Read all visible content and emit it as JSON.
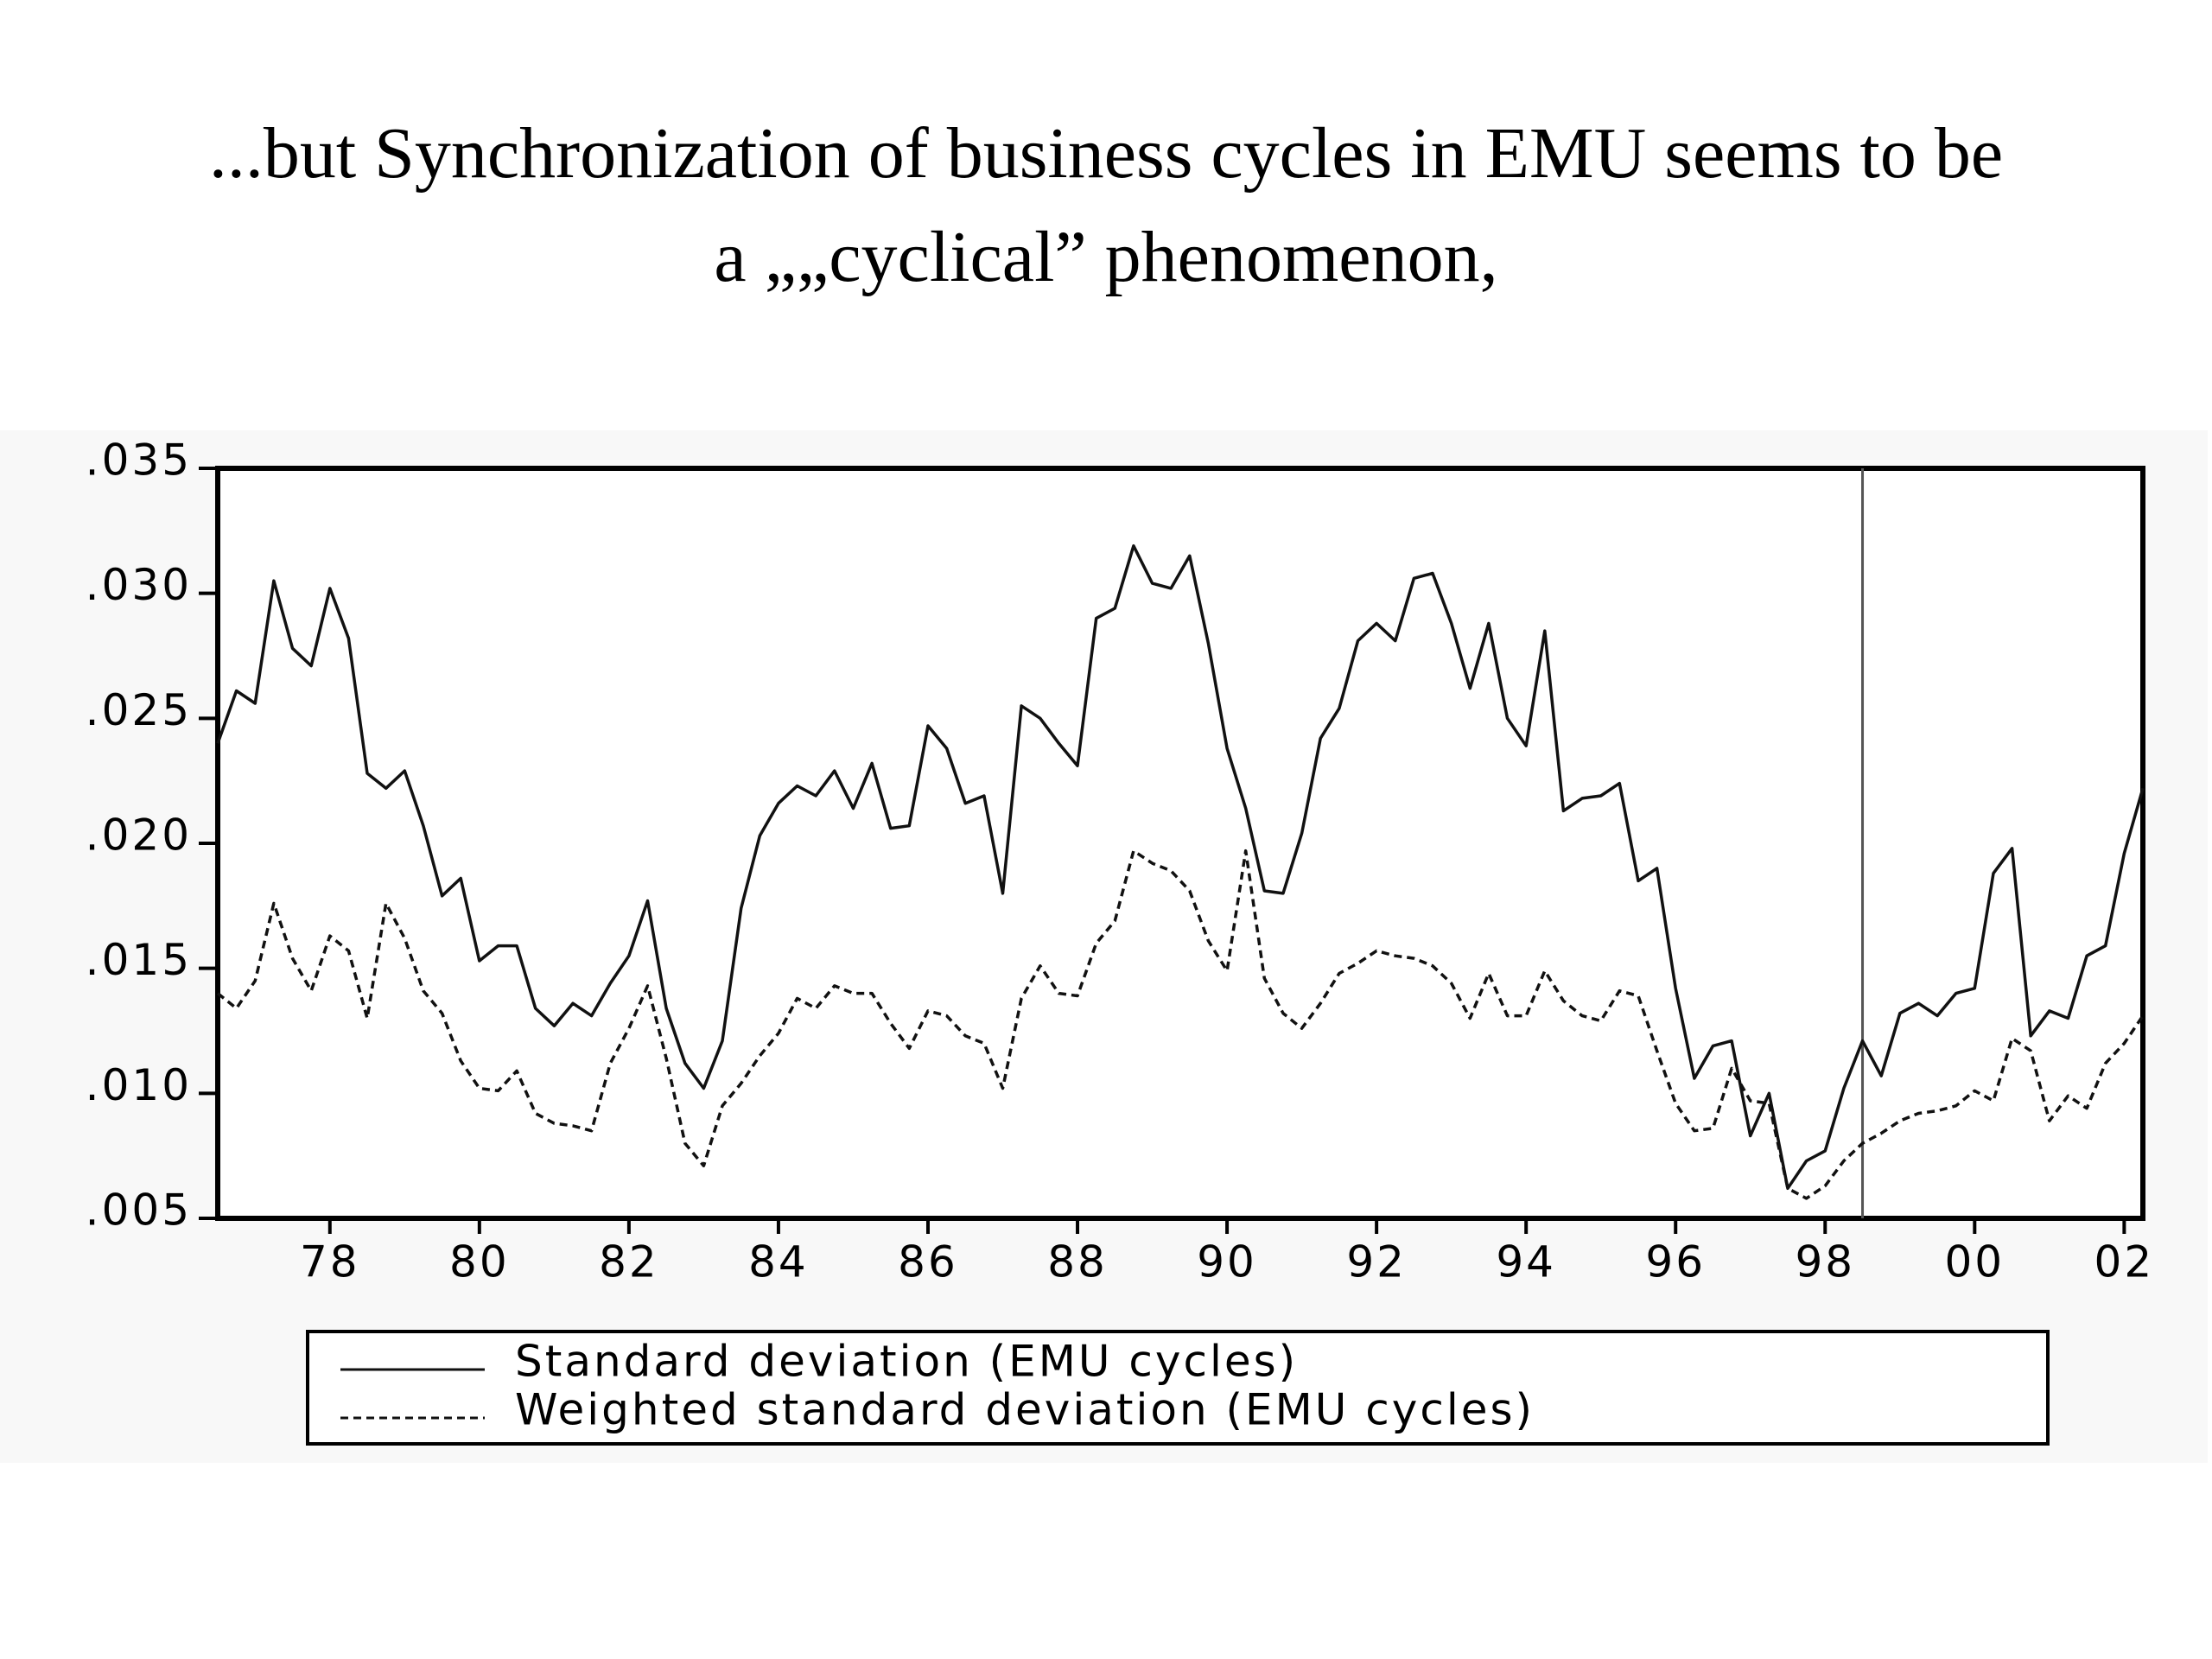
{
  "chart_data": {
    "type": "line",
    "title": [
      "...but Synchronization of business cycles in EMU seems to be",
      "a „„cyclical” phenomenon,"
    ],
    "x": [
      1977,
      1977.25,
      1977.5,
      1977.75,
      1978,
      1978.25,
      1978.5,
      1978.75,
      1979,
      1979.25,
      1979.5,
      1979.75,
      1980,
      1980.25,
      1980.5,
      1980.75,
      1981,
      1981.25,
      1981.5,
      1981.75,
      1982,
      1982.25,
      1982.5,
      1982.75,
      1983,
      1983.25,
      1983.5,
      1983.75,
      1984,
      1984.25,
      1984.5,
      1984.75,
      1985,
      1985.25,
      1985.5,
      1985.75,
      1986,
      1986.25,
      1986.5,
      1986.75,
      1987,
      1987.25,
      1987.5,
      1987.75,
      1988,
      1988.25,
      1988.5,
      1988.75,
      1989,
      1989.25,
      1989.5,
      1989.75,
      1990,
      1990.25,
      1990.5,
      1990.75,
      1991,
      1991.25,
      1991.5,
      1991.75,
      1992,
      1992.25,
      1992.5,
      1992.75,
      1993,
      1993.25,
      1993.5,
      1993.75,
      1994,
      1994.25,
      1994.5,
      1994.75,
      1995,
      1995.25,
      1995.5,
      1995.75,
      1996,
      1996.25,
      1996.5,
      1996.75,
      1997,
      1997.25,
      1997.5,
      1997.75,
      1998,
      1998.25,
      1998.5,
      1998.75,
      1999,
      1999.25,
      1999.5,
      1999.75,
      2000,
      2000.25,
      2000.5,
      2000.75,
      2001,
      2001.25,
      2001.5,
      2001.75,
      2002,
      2002.25,
      2002.5,
      2002.75
    ],
    "series": [
      {
        "name": "Standard deviation (EMU cycles)",
        "color": "#111111",
        "dash": false,
        "values": [
          0.024,
          0.0261,
          0.0256,
          0.0305,
          0.0278,
          0.0271,
          0.0302,
          0.0282,
          0.0228,
          0.0222,
          0.0229,
          0.0207,
          0.0179,
          0.0186,
          0.0153,
          0.0159,
          0.0159,
          0.0134,
          0.0127,
          0.0136,
          0.0131,
          0.0144,
          0.0155,
          0.0177,
          0.0134,
          0.0112,
          0.0102,
          0.0121,
          0.0174,
          0.0203,
          0.0216,
          0.0223,
          0.0219,
          0.0229,
          0.0214,
          0.0232,
          0.0206,
          0.0207,
          0.0247,
          0.0238,
          0.0216,
          0.0219,
          0.018,
          0.0255,
          0.025,
          0.024,
          0.0231,
          0.029,
          0.0294,
          0.0319,
          0.0304,
          0.0302,
          0.0315,
          0.028,
          0.0238,
          0.0214,
          0.0181,
          0.018,
          0.0204,
          0.0242,
          0.0254,
          0.0281,
          0.0288,
          0.0281,
          0.0306,
          0.0308,
          0.0288,
          0.0262,
          0.0288,
          0.025,
          0.0239,
          0.0285,
          0.0213,
          0.0218,
          0.0219,
          0.0224,
          0.0185,
          0.019,
          0.0142,
          0.0106,
          0.0119,
          0.0121,
          0.0083,
          0.01,
          0.0062,
          0.0073,
          0.0077,
          0.0102,
          0.0121,
          0.0107,
          0.0132,
          0.0136,
          0.0131,
          0.014,
          0.0142,
          0.0188,
          0.0198,
          0.0123,
          0.0133,
          0.013,
          0.0155,
          0.0159,
          0.0196,
          0.0222
        ]
      },
      {
        "name": "Weighted standard deviation (EMU cycles)",
        "color": "#111111",
        "dash": true,
        "values": [
          0.014,
          0.0134,
          0.0145,
          0.0176,
          0.0154,
          0.0141,
          0.0163,
          0.0157,
          0.013,
          0.0176,
          0.0162,
          0.0141,
          0.0132,
          0.0113,
          0.0102,
          0.0101,
          0.0109,
          0.0092,
          0.0088,
          0.0087,
          0.0085,
          0.0112,
          0.0126,
          0.0143,
          0.0114,
          0.008,
          0.0071,
          0.0095,
          0.0104,
          0.0115,
          0.0124,
          0.0138,
          0.0134,
          0.0143,
          0.014,
          0.014,
          0.0128,
          0.0118,
          0.0133,
          0.0131,
          0.0123,
          0.012,
          0.0102,
          0.0138,
          0.0151,
          0.014,
          0.0139,
          0.016,
          0.0169,
          0.0197,
          0.0192,
          0.0189,
          0.0181,
          0.0161,
          0.0149,
          0.0197,
          0.0146,
          0.0132,
          0.0126,
          0.0136,
          0.0148,
          0.0152,
          0.0157,
          0.0155,
          0.0154,
          0.0151,
          0.0144,
          0.013,
          0.0148,
          0.0131,
          0.0131,
          0.0149,
          0.0137,
          0.0131,
          0.0129,
          0.0141,
          0.0139,
          0.0117,
          0.0096,
          0.0085,
          0.0086,
          0.011,
          0.0097,
          0.0096,
          0.0062,
          0.0058,
          0.0063,
          0.0073,
          0.008,
          0.0084,
          0.0089,
          0.0092,
          0.0093,
          0.0095,
          0.0101,
          0.0097,
          0.0122,
          0.0117,
          0.0089,
          0.0099,
          0.0094,
          0.0112,
          0.012,
          0.0131
        ]
      }
    ],
    "xlim": [
      1977,
      2002.75
    ],
    "xticks": [
      {
        "value": 1978.5,
        "label": "78"
      },
      {
        "value": 1980.5,
        "label": "80"
      },
      {
        "value": 1982.5,
        "label": "82"
      },
      {
        "value": 1984.5,
        "label": "84"
      },
      {
        "value": 1986.5,
        "label": "86"
      },
      {
        "value": 1988.5,
        "label": "88"
      },
      {
        "value": 1990.5,
        "label": "90"
      },
      {
        "value": 1992.5,
        "label": "92"
      },
      {
        "value": 1994.5,
        "label": "94"
      },
      {
        "value": 1996.5,
        "label": "96"
      },
      {
        "value": 1998.5,
        "label": "98"
      },
      {
        "value": 2000.5,
        "label": "00"
      },
      {
        "value": 2002.5,
        "label": "02"
      }
    ],
    "ylim": [
      0.005,
      0.035
    ],
    "yticks": [
      {
        "value": 0.005,
        "label": ".005"
      },
      {
        "value": 0.01,
        "label": ".010"
      },
      {
        "value": 0.015,
        "label": ".015"
      },
      {
        "value": 0.02,
        "label": ".020"
      },
      {
        "value": 0.025,
        "label": ".025"
      },
      {
        "value": 0.03,
        "label": ".030"
      },
      {
        "value": 0.035,
        "label": ".035"
      }
    ],
    "vline": 1999,
    "legend": "bottom"
  }
}
